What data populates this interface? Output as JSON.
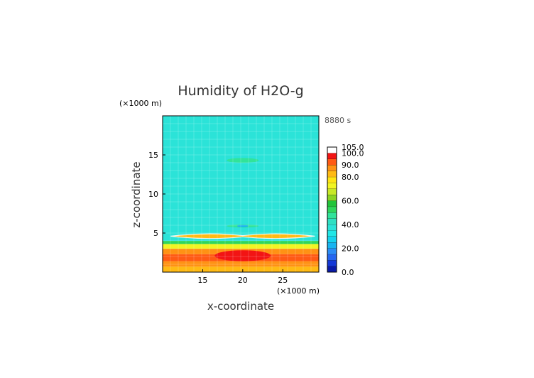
{
  "chart_data": {
    "type": "heatmap",
    "title": "Humidity of H2O-g",
    "time_label": "8880 s",
    "xlabel": "x-coordinate",
    "ylabel": "z-coordinate",
    "x_unit": "(×1000 m)",
    "z_unit": "(×1000 m)",
    "xlim": [
      10,
      29.5
    ],
    "zlim": [
      0,
      20
    ],
    "x_ticks": [
      15,
      20,
      25
    ],
    "z_ticks": [
      5,
      10,
      15
    ],
    "colorbar": {
      "range": [
        0,
        105
      ],
      "tick_values": [
        0,
        20,
        40,
        60,
        80,
        90,
        100,
        105
      ],
      "tick_labels": [
        "0.0",
        "20.0",
        "40.0",
        "60.0",
        "80.0",
        "90.0",
        "100.0",
        "105.0"
      ],
      "colors": [
        {
          "from": 0,
          "to": 5,
          "color": "#0a1aa8"
        },
        {
          "from": 5,
          "to": 10,
          "color": "#1438d6"
        },
        {
          "from": 10,
          "to": 15,
          "color": "#2566f0"
        },
        {
          "from": 15,
          "to": 20,
          "color": "#2b8cf5"
        },
        {
          "from": 20,
          "to": 25,
          "color": "#18b4f0"
        },
        {
          "from": 25,
          "to": 30,
          "color": "#16d2ee"
        },
        {
          "from": 30,
          "to": 35,
          "color": "#22e6e6"
        },
        {
          "from": 35,
          "to": 40,
          "color": "#2be3d8"
        },
        {
          "from": 40,
          "to": 45,
          "color": "#2fdfc2"
        },
        {
          "from": 45,
          "to": 50,
          "color": "#31e39a"
        },
        {
          "from": 50,
          "to": 55,
          "color": "#2fd65c"
        },
        {
          "from": 55,
          "to": 60,
          "color": "#22c43a"
        },
        {
          "from": 60,
          "to": 65,
          "color": "#8cd422"
        },
        {
          "from": 65,
          "to": 70,
          "color": "#c8e826"
        },
        {
          "from": 70,
          "to": 75,
          "color": "#f2f522"
        },
        {
          "from": 75,
          "to": 80,
          "color": "#ffe414"
        },
        {
          "from": 80,
          "to": 85,
          "color": "#ffba14"
        },
        {
          "from": 85,
          "to": 90,
          "color": "#ff9214"
        },
        {
          "from": 90,
          "to": 95,
          "color": "#ff5a14"
        },
        {
          "from": 95,
          "to": 100,
          "color": "#f21414"
        },
        {
          "from": 100,
          "to": 105,
          "color": "#ffffff"
        }
      ]
    },
    "fields": [
      {
        "z_range": [
          0,
          0.7
        ],
        "value": 82
      },
      {
        "z_range": [
          0.7,
          1.4
        ],
        "value": 86
      },
      {
        "z_range": [
          1.4,
          2.3
        ],
        "value": 90
      },
      {
        "z_range": [
          2.3,
          3.0
        ],
        "value": 86
      },
      {
        "z_range": [
          3.0,
          3.6
        ],
        "value": 72
      },
      {
        "z_range": [
          3.6,
          4.0
        ],
        "value": 52
      },
      {
        "z_range": [
          4.0,
          20
        ],
        "value": 38
      }
    ],
    "features": [
      {
        "shape": "lens",
        "x_center": 20,
        "z_center": 2.1,
        "half_width": 3.5,
        "half_height": 0.7,
        "value": 96
      },
      {
        "shape": "bowtie",
        "x_center": 20,
        "z_center": 4.6,
        "half_width": 9.0,
        "half_height": 0.55,
        "value": 80
      },
      {
        "shape": "lens",
        "x_center": 20,
        "z_center": 5.9,
        "half_width": 2.0,
        "half_height": 0.2,
        "value": 48
      },
      {
        "shape": "lens",
        "x_center": 20,
        "z_center": 5.9,
        "half_width": 0.7,
        "half_height": 0.15,
        "value": 24
      },
      {
        "shape": "lens",
        "x_center": 20,
        "z_center": 14.3,
        "half_width": 2.0,
        "half_height": 0.3,
        "value": 48
      }
    ]
  }
}
